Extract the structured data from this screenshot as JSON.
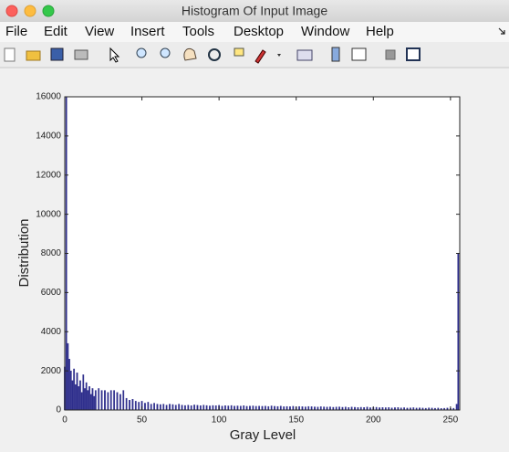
{
  "window": {
    "title": "Histogram Of Input Image"
  },
  "menu": [
    "File",
    "Edit",
    "View",
    "Insert",
    "Tools",
    "Desktop",
    "Window",
    "Help"
  ],
  "chart_data": {
    "type": "bar",
    "xlabel": "Gray Level",
    "ylabel": "Distribution",
    "color": "#2e2e8c",
    "xlim": [
      0,
      256
    ],
    "xticks": [
      0,
      50,
      100,
      150,
      200,
      250
    ],
    "ylim": [
      0,
      16000
    ],
    "yticks": [
      0,
      2000,
      4000,
      6000,
      8000,
      10000,
      12000,
      14000,
      16000
    ],
    "x": [
      0,
      1,
      2,
      3,
      4,
      5,
      6,
      7,
      8,
      9,
      10,
      11,
      12,
      13,
      14,
      15,
      16,
      17,
      18,
      19,
      20,
      21,
      22,
      23,
      24,
      25,
      26,
      27,
      28,
      29,
      30,
      31,
      32,
      33,
      34,
      35,
      36,
      37,
      38,
      39,
      40,
      41,
      42,
      43,
      44,
      45,
      46,
      47,
      48,
      49,
      50,
      51,
      52,
      53,
      54,
      55,
      56,
      57,
      58,
      59,
      60,
      61,
      62,
      63,
      64,
      65,
      66,
      67,
      68,
      69,
      70,
      71,
      72,
      73,
      74,
      75,
      76,
      77,
      78,
      79,
      80,
      81,
      82,
      83,
      84,
      85,
      86,
      87,
      88,
      89,
      90,
      91,
      92,
      93,
      94,
      95,
      96,
      97,
      98,
      99,
      100,
      101,
      102,
      103,
      104,
      105,
      106,
      107,
      108,
      109,
      110,
      111,
      112,
      113,
      114,
      115,
      116,
      117,
      118,
      119,
      120,
      121,
      122,
      123,
      124,
      125,
      126,
      127,
      128,
      129,
      130,
      131,
      132,
      133,
      134,
      135,
      136,
      137,
      138,
      139,
      140,
      141,
      142,
      143,
      144,
      145,
      146,
      147,
      148,
      149,
      150,
      151,
      152,
      153,
      154,
      155,
      156,
      157,
      158,
      159,
      160,
      161,
      162,
      163,
      164,
      165,
      166,
      167,
      168,
      169,
      170,
      171,
      172,
      173,
      174,
      175,
      176,
      177,
      178,
      179,
      180,
      181,
      182,
      183,
      184,
      185,
      186,
      187,
      188,
      189,
      190,
      191,
      192,
      193,
      194,
      195,
      196,
      197,
      198,
      199,
      200,
      201,
      202,
      203,
      204,
      205,
      206,
      207,
      208,
      209,
      210,
      211,
      212,
      213,
      214,
      215,
      216,
      217,
      218,
      219,
      220,
      221,
      222,
      223,
      224,
      225,
      226,
      227,
      228,
      229,
      230,
      231,
      232,
      233,
      234,
      235,
      236,
      237,
      238,
      239,
      240,
      241,
      242,
      243,
      244,
      245,
      246,
      247,
      248,
      249,
      250,
      251,
      252,
      253,
      254,
      255
    ],
    "values": [
      2200,
      16000,
      3400,
      2600,
      2000,
      1500,
      2100,
      1300,
      1900,
      1200,
      1500,
      900,
      1800,
      1100,
      1400,
      1000,
      1200,
      800,
      1100,
      700,
      1000,
      0,
      1100,
      0,
      1000,
      0,
      1000,
      0,
      900,
      0,
      1000,
      0,
      1000,
      0,
      900,
      0,
      800,
      0,
      1000,
      0,
      600,
      0,
      500,
      0,
      550,
      0,
      450,
      0,
      400,
      0,
      450,
      0,
      350,
      0,
      400,
      0,
      300,
      0,
      350,
      0,
      300,
      0,
      280,
      0,
      300,
      0,
      250,
      0,
      300,
      0,
      280,
      0,
      250,
      0,
      300,
      0,
      250,
      0,
      230,
      0,
      250,
      0,
      220,
      0,
      260,
      0,
      240,
      0,
      220,
      0,
      250,
      0,
      230,
      0,
      210,
      0,
      230,
      0,
      220,
      0,
      240,
      0,
      200,
      0,
      220,
      0,
      210,
      0,
      230,
      0,
      200,
      0,
      210,
      0,
      200,
      0,
      220,
      0,
      190,
      0,
      200,
      0,
      210,
      0,
      190,
      0,
      200,
      0,
      190,
      0,
      200,
      0,
      180,
      0,
      210,
      0,
      190,
      0,
      180,
      0,
      200,
      0,
      170,
      0,
      180,
      0,
      170,
      0,
      190,
      0,
      160,
      0,
      180,
      0,
      170,
      0,
      160,
      0,
      180,
      0,
      170,
      0,
      160,
      0,
      150,
      0,
      170,
      0,
      160,
      0,
      150,
      0,
      160,
      0,
      140,
      0,
      150,
      0,
      160,
      0,
      140,
      0,
      150,
      0,
      130,
      0,
      150,
      0,
      140,
      0,
      130,
      0,
      140,
      0,
      130,
      0,
      150,
      0,
      120,
      0,
      130,
      0,
      140,
      0,
      120,
      0,
      130,
      0,
      120,
      0,
      130,
      0,
      110,
      0,
      120,
      0,
      130,
      0,
      110,
      0,
      120,
      0,
      100,
      0,
      110,
      0,
      120,
      0,
      100,
      0,
      110,
      0,
      100,
      0,
      90,
      0,
      110,
      0,
      100,
      0,
      90,
      0,
      100,
      0,
      80,
      0,
      90,
      0,
      100,
      0,
      80,
      0,
      90,
      0,
      300,
      8000
    ]
  }
}
